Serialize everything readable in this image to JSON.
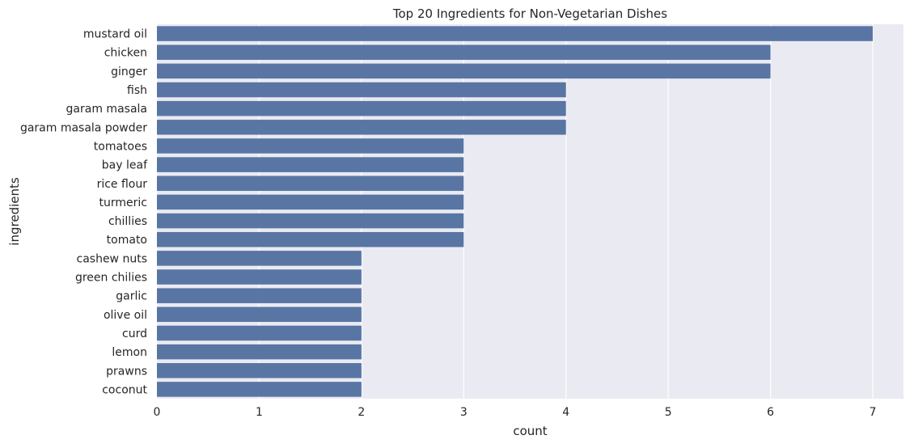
{
  "chart_data": {
    "type": "bar",
    "orientation": "horizontal",
    "title": "Top 20 Ingredients for Non-Vegetarian Dishes",
    "xlabel": "count",
    "ylabel": "ingredients",
    "categories": [
      "mustard oil",
      "chicken",
      "ginger",
      "fish",
      "garam masala",
      "garam masala powder",
      "tomatoes",
      "bay leaf",
      "rice flour",
      "turmeric",
      "chillies",
      "tomato",
      "cashew nuts",
      "green chilies",
      "garlic",
      "olive oil",
      "curd",
      "lemon",
      "prawns",
      "coconut"
    ],
    "values": [
      7,
      6,
      6,
      4,
      4,
      4,
      3,
      3,
      3,
      3,
      3,
      3,
      2,
      2,
      2,
      2,
      2,
      2,
      2,
      2
    ],
    "xlim": [
      0,
      7.3
    ],
    "xticks": [
      "0",
      "1",
      "2",
      "3",
      "4",
      "5",
      "6",
      "7"
    ],
    "grid": true,
    "legend": "none",
    "colors": {
      "bar": "#5975a4",
      "plot_background": "#eaeaf2",
      "grid": "#ffffff",
      "text": "#262626"
    }
  }
}
